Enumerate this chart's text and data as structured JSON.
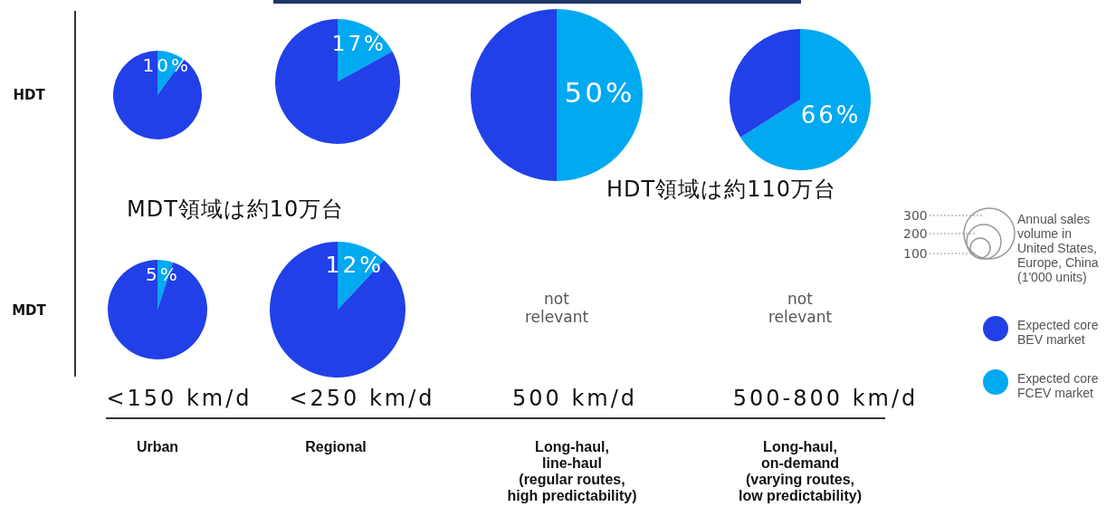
{
  "chart_data": [
    {
      "type": "pie",
      "categories": [
        null,
        null
      ],
      "values": [
        10,
        90
      ],
      "colors": [
        "#00a9f0",
        "#2140e8"
      ],
      "value_labels": [
        "10%",
        null
      ]
    },
    {
      "type": "pie",
      "categories": [
        null,
        null
      ],
      "values": [
        17,
        83
      ],
      "colors": [
        "#00a9f0",
        "#2140e8"
      ],
      "value_labels": [
        "17%",
        null
      ]
    },
    {
      "type": "pie",
      "categories": [
        null,
        null
      ],
      "values": [
        50,
        50
      ],
      "colors": [
        "#00a9f0",
        "#2140e8"
      ],
      "value_labels": [
        "50%",
        null
      ]
    },
    {
      "type": "pie",
      "categories": [
        null,
        null
      ],
      "values": [
        66,
        34
      ],
      "colors": [
        "#00a9f0",
        "#2140e8"
      ],
      "value_labels": [
        "66%",
        null
      ]
    },
    {
      "type": "pie",
      "categories": [
        null,
        null
      ],
      "values": [
        5,
        95
      ],
      "colors": [
        "#00a9f0",
        "#2140e8"
      ],
      "value_labels": [
        "5%",
        null
      ]
    },
    {
      "type": "pie",
      "categories": [
        null,
        null
      ],
      "values": [
        12,
        88
      ],
      "colors": [
        "#00a9f0",
        "#2140e8"
      ],
      "value_labels": [
        "12%",
        null
      ]
    },
    {
      "type": "other",
      "annotations": [
        "HDT",
        "MDT",
        "<150 km/d",
        "<250 km/d",
        "500 km/d",
        "500-800 km/d",
        "Urban",
        "Regional",
        "Long-haul,\nline-haul\n(regular routes,\nhigh predictability)",
        "Long-haul,\non-demand\n(varying routes,\nlow predictability)",
        "MDT領域は約10万台",
        "HDT領域は約110万台",
        "not\nrelevant",
        "not\nrelevant",
        "300",
        "200",
        "100",
        "Annual sales\nvolume in\nUnited States,\nEurope, China\n(1'000 units)",
        "Expected core\nBEV market",
        "Expected core\nFCEV market"
      ]
    }
  ]
}
